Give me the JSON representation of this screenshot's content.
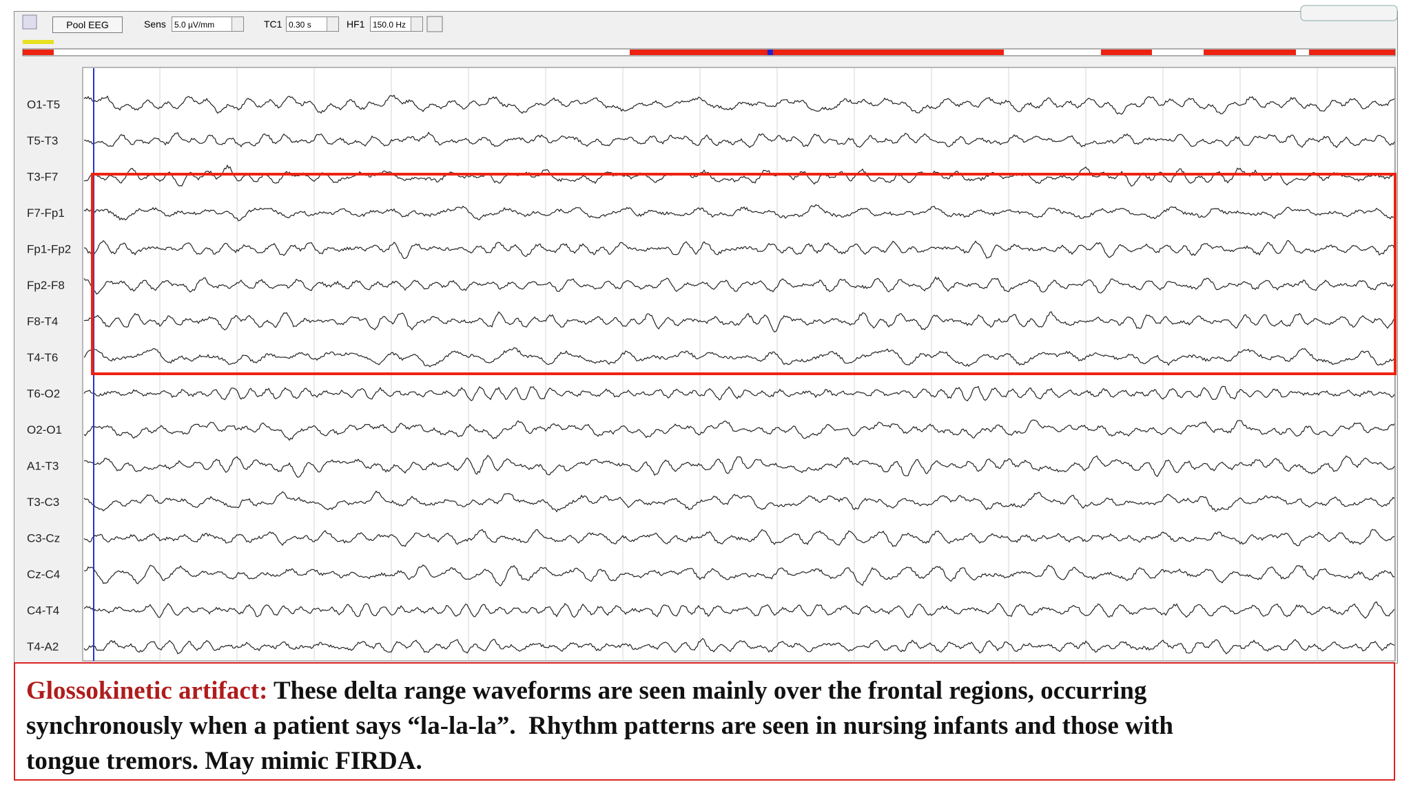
{
  "toolbar": {
    "montage_button": "Pool EEG",
    "sens_label": "Sens",
    "sens_value": "5.0 µV/mm",
    "tc_label": "TC1",
    "tc_value": "0.30 s",
    "hf_label": "HF1",
    "hf_value": "150.0 Hz"
  },
  "channels": [
    "O1-T5",
    "T5-T3",
    "T3-F7",
    "F7-Fp1",
    "Fp1-Fp2",
    "Fp2-F8",
    "F8-T4",
    "T4-T6",
    "T6-O2",
    "O2-O1",
    "A1-T3",
    "T3-C3",
    "C3-Cz",
    "Cz-C4",
    "C4-T4",
    "T4-A2"
  ],
  "caption": {
    "title": "Glossokinetic artifact:",
    "lines": [
      "These delta range waveforms are seen mainly over the frontal regions, occurring",
      "synchronously when a patient says “la-la-la”.  Rhythm patterns are seen in nursing infants and those with",
      "tongue tremors. May mimic FIRDA."
    ]
  }
}
